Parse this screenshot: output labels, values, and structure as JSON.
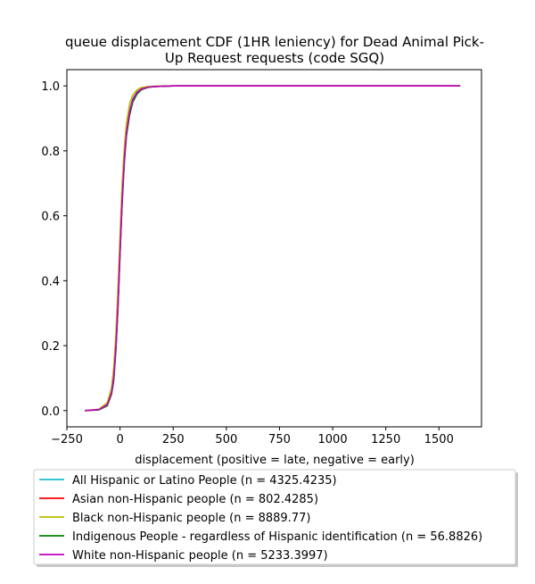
{
  "chart_data": {
    "type": "line",
    "title_line1": "queue displacement CDF (1HR leniency) for Dead Animal Pick-",
    "title_line2": "Up Request  requests (code SGQ)",
    "xlabel": "displacement (positive = late, negative = early)",
    "ylabel": "",
    "xlim": [
      -250,
      1700
    ],
    "ylim": [
      -0.05,
      1.05
    ],
    "xticks": [
      -250,
      0,
      250,
      500,
      750,
      1000,
      1250,
      1500
    ],
    "xtick_labels": [
      "−250",
      "0",
      "250",
      "500",
      "750",
      "1000",
      "1250",
      "1500"
    ],
    "yticks": [
      0.0,
      0.2,
      0.4,
      0.6,
      0.8,
      1.0
    ],
    "ytick_labels": [
      "0.0",
      "0.2",
      "0.4",
      "0.6",
      "0.8",
      "1.0"
    ],
    "grid": false,
    "legend_placement": "below",
    "series": [
      {
        "name": "All Hispanic or Latino People (n = 4325.4235)",
        "color": "#17becf",
        "x": [
          -165,
          -100,
          -60,
          -40,
          -30,
          -20,
          -10,
          0,
          10,
          20,
          30,
          45,
          60,
          80,
          100,
          130,
          160,
          200,
          250,
          400,
          1000,
          1600
        ],
        "y": [
          0.0,
          0.003,
          0.02,
          0.06,
          0.11,
          0.2,
          0.33,
          0.5,
          0.66,
          0.78,
          0.86,
          0.925,
          0.96,
          0.982,
          0.991,
          0.996,
          0.998,
          0.999,
          1.0,
          1.0,
          1.0,
          1.0
        ]
      },
      {
        "name": "Asian non-Hispanic people (n = 802.4285)",
        "color": "#ff0000",
        "x": [
          -165,
          -100,
          -60,
          -40,
          -30,
          -20,
          -10,
          0,
          10,
          20,
          30,
          45,
          60,
          80,
          100,
          130,
          160,
          200,
          250,
          400,
          1000,
          1600
        ],
        "y": [
          0.0,
          0.003,
          0.018,
          0.055,
          0.1,
          0.19,
          0.32,
          0.49,
          0.65,
          0.77,
          0.855,
          0.92,
          0.957,
          0.98,
          0.99,
          0.996,
          0.998,
          0.999,
          1.0,
          1.0,
          1.0,
          1.0
        ]
      },
      {
        "name": "Black non-Hispanic people (n = 8889.77)",
        "color": "#bfbf00",
        "x": [
          -165,
          -100,
          -60,
          -40,
          -30,
          -20,
          -10,
          0,
          10,
          20,
          30,
          45,
          60,
          80,
          100,
          130,
          160,
          200,
          250,
          400,
          1000,
          1600
        ],
        "y": [
          0.0,
          0.004,
          0.025,
          0.07,
          0.13,
          0.23,
          0.37,
          0.54,
          0.7,
          0.81,
          0.885,
          0.945,
          0.972,
          0.988,
          0.995,
          0.998,
          0.999,
          1.0,
          1.0,
          1.0,
          1.0,
          1.0
        ]
      },
      {
        "name": "Indigenous People - regardless of Hispanic identification (n = 56.8826)",
        "color": "#008000",
        "x": [
          -165,
          -100,
          -60,
          -40,
          -30,
          -20,
          -10,
          0,
          10,
          20,
          30,
          45,
          60,
          80,
          100,
          130,
          160,
          200,
          250,
          400,
          1000,
          1600
        ],
        "y": [
          0.0,
          0.002,
          0.015,
          0.05,
          0.09,
          0.18,
          0.31,
          0.48,
          0.64,
          0.76,
          0.845,
          0.91,
          0.95,
          0.975,
          0.988,
          0.995,
          0.998,
          0.999,
          1.0,
          1.0,
          1.0,
          1.0
        ]
      },
      {
        "name": "White non-Hispanic people (n = 5233.3997)",
        "color": "#bf00bf",
        "x": [
          -165,
          -100,
          -60,
          -40,
          -30,
          -20,
          -10,
          0,
          10,
          20,
          30,
          45,
          60,
          80,
          100,
          130,
          160,
          200,
          250,
          400,
          1000,
          1600
        ],
        "y": [
          0.0,
          0.003,
          0.018,
          0.055,
          0.1,
          0.19,
          0.32,
          0.49,
          0.65,
          0.77,
          0.855,
          0.92,
          0.957,
          0.98,
          0.99,
          0.996,
          0.998,
          0.999,
          1.0,
          1.0,
          1.0,
          1.0
        ]
      }
    ]
  }
}
